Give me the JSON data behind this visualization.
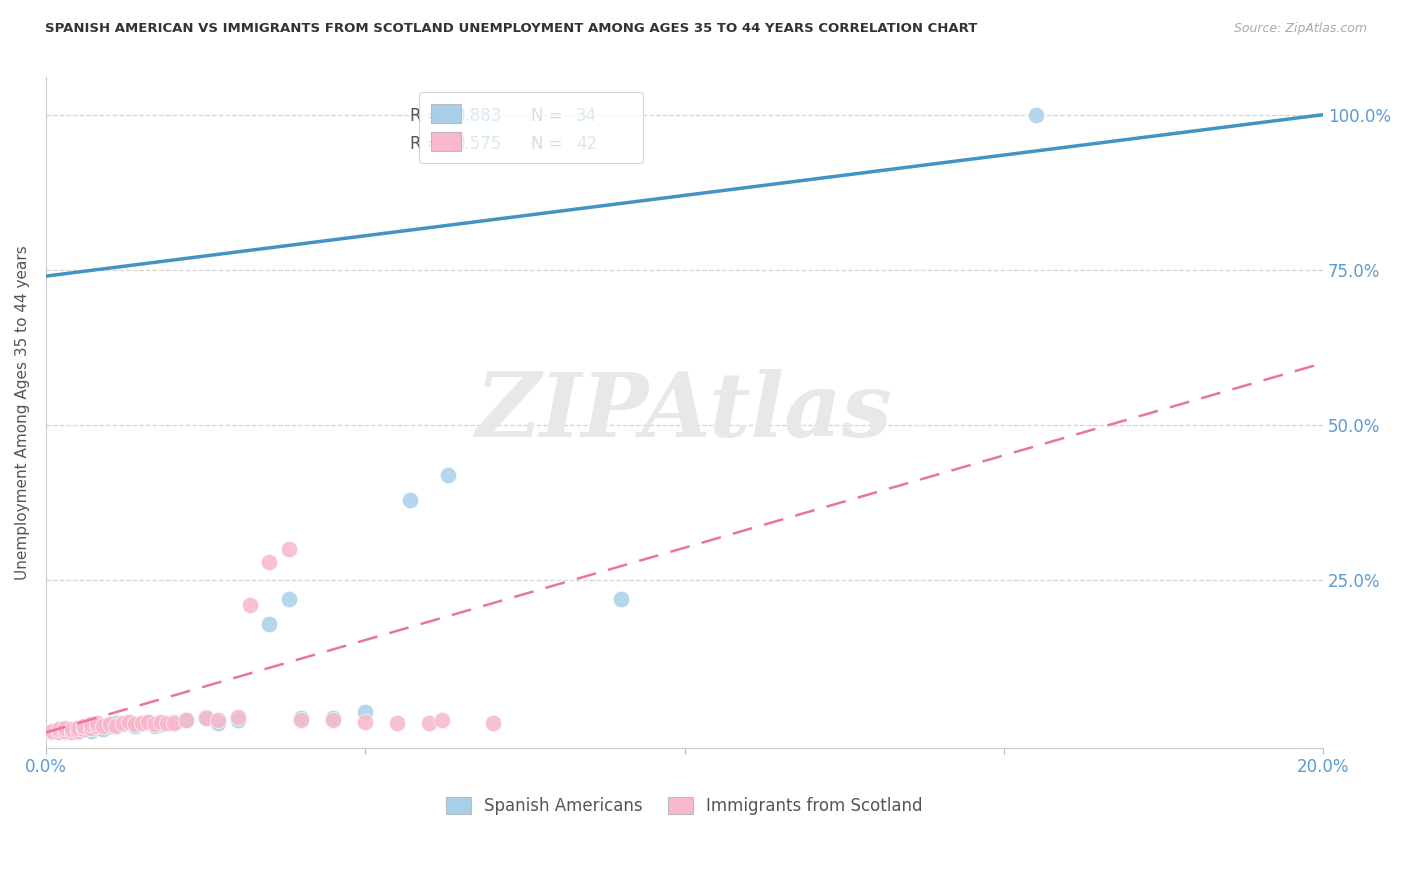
{
  "title": "SPANISH AMERICAN VS IMMIGRANTS FROM SCOTLAND UNEMPLOYMENT AMONG AGES 35 TO 44 YEARS CORRELATION CHART",
  "source": "Source: ZipAtlas.com",
  "ylabel": "Unemployment Among Ages 35 to 44 years",
  "xlim": [
    0.0,
    0.2
  ],
  "ylim": [
    -0.02,
    1.06
  ],
  "xticks": [
    0.0,
    0.05,
    0.1,
    0.15,
    0.2
  ],
  "xtick_labels": [
    "0.0%",
    "",
    "",
    "",
    "20.0%"
  ],
  "ytick_labels": [
    "100.0%",
    "75.0%",
    "50.0%",
    "25.0%"
  ],
  "ytick_positions": [
    1.0,
    0.75,
    0.5,
    0.25
  ],
  "legend_r1": "0.883",
  "legend_n1": "34",
  "legend_r2": "0.575",
  "legend_n2": "42",
  "blue_color": "#a8cfe8",
  "pink_color": "#f9b8cb",
  "blue_line_color": "#4393c3",
  "pink_line_color": "#e8769a",
  "axis_color": "#5b9bd5",
  "watermark": "ZIPAtlas",
  "blue_scatter_x": [
    0.001,
    0.002,
    0.003,
    0.003,
    0.004,
    0.005,
    0.005,
    0.006,
    0.007,
    0.008,
    0.009,
    0.01,
    0.011,
    0.012,
    0.013,
    0.014,
    0.015,
    0.016,
    0.017,
    0.018,
    0.02,
    0.022,
    0.025,
    0.027,
    0.03,
    0.035,
    0.038,
    0.04,
    0.045,
    0.05,
    0.057,
    0.063,
    0.09,
    0.155
  ],
  "blue_scatter_y": [
    0.005,
    0.008,
    0.005,
    0.01,
    0.008,
    0.005,
    0.012,
    0.01,
    0.008,
    0.012,
    0.01,
    0.015,
    0.02,
    0.018,
    0.02,
    0.015,
    0.02,
    0.022,
    0.015,
    0.018,
    0.022,
    0.025,
    0.03,
    0.02,
    0.025,
    0.18,
    0.22,
    0.028,
    0.028,
    0.038,
    0.38,
    0.42,
    0.22,
    1.0
  ],
  "pink_scatter_x": [
    0.001,
    0.001,
    0.002,
    0.002,
    0.003,
    0.003,
    0.004,
    0.004,
    0.005,
    0.005,
    0.006,
    0.006,
    0.007,
    0.007,
    0.008,
    0.008,
    0.009,
    0.01,
    0.011,
    0.012,
    0.013,
    0.014,
    0.015,
    0.016,
    0.017,
    0.018,
    0.019,
    0.02,
    0.022,
    0.025,
    0.027,
    0.03,
    0.032,
    0.035,
    0.038,
    0.04,
    0.045,
    0.05,
    0.055,
    0.06,
    0.062,
    0.07
  ],
  "pink_scatter_y": [
    0.005,
    0.008,
    0.005,
    0.01,
    0.008,
    0.012,
    0.005,
    0.01,
    0.008,
    0.012,
    0.01,
    0.015,
    0.012,
    0.018,
    0.015,
    0.02,
    0.015,
    0.018,
    0.015,
    0.02,
    0.022,
    0.018,
    0.02,
    0.022,
    0.018,
    0.022,
    0.02,
    0.02,
    0.025,
    0.028,
    0.025,
    0.03,
    0.21,
    0.28,
    0.3,
    0.025,
    0.025,
    0.022,
    0.02,
    0.02,
    0.025,
    0.02
  ],
  "blue_line_x": [
    0.0,
    0.2
  ],
  "blue_line_y": [
    0.74,
    1.0
  ],
  "pink_line_x": [
    0.0,
    0.2
  ],
  "pink_line_y": [
    0.005,
    0.6
  ],
  "background_color": "#ffffff",
  "grid_color": "#d5d5d5"
}
